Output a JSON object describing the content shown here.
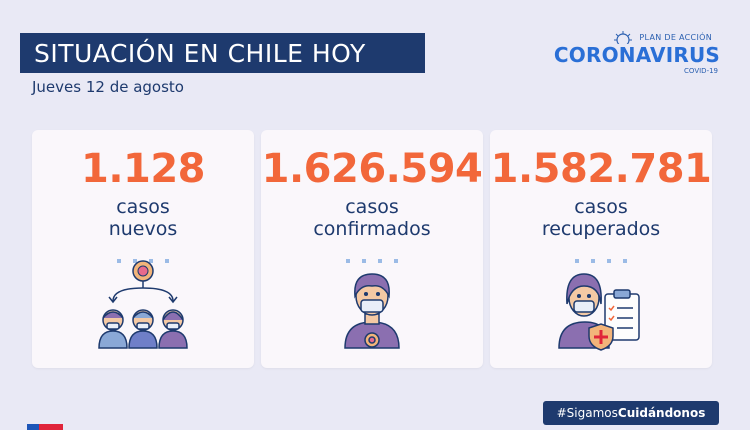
{
  "header": {
    "title": "SITUACIÓN EN CHILE HOY",
    "date": "Jueves 12 de agosto"
  },
  "logo": {
    "top": "PLAN DE ACCIÓN",
    "main": "CORONAVIRUS",
    "sub": "COVID-19"
  },
  "cards": [
    {
      "value": "1.128",
      "line1": "casos",
      "line2": "nuevos",
      "icon": "group-contagion-icon"
    },
    {
      "value": "1.626.594",
      "line1": "casos",
      "line2": "confirmados",
      "icon": "masked-person-virus-icon"
    },
    {
      "value": "1.582.781",
      "line1": "casos",
      "line2": "recuperados",
      "icon": "recovered-checklist-icon"
    }
  ],
  "footer": {
    "hashtag_prefix": "#Sigamos",
    "hashtag_bold": "Cuidándonos"
  },
  "colors": {
    "navy": "#1e3a6e",
    "accent_orange": "#f2673a",
    "background": "#e9e9f5",
    "card": "#faf7fb"
  }
}
